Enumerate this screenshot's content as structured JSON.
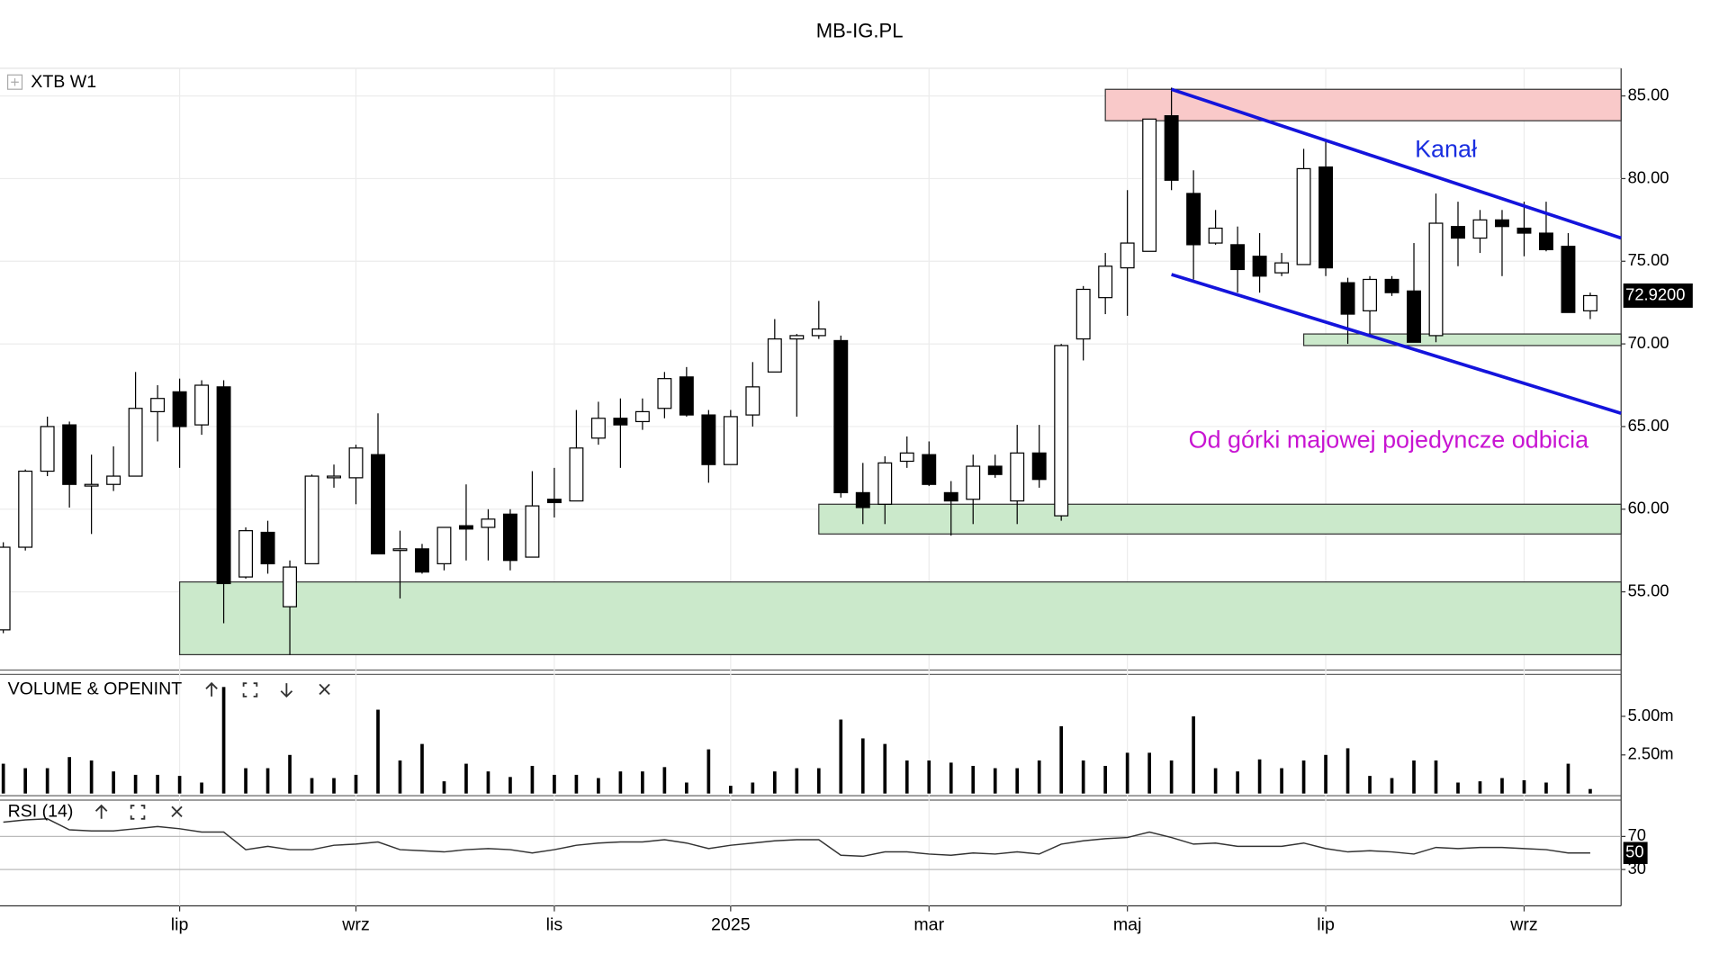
{
  "chart_data": [
    {
      "type": "candlestick",
      "title": "MB-IG.PL",
      "label": "XTB W1",
      "categories": [
        null,
        null,
        null,
        null,
        null,
        null,
        null,
        null,
        "lip",
        null,
        null,
        null,
        null,
        null,
        null,
        null,
        "wrz",
        null,
        null,
        null,
        null,
        null,
        null,
        null,
        null,
        "lis",
        null,
        null,
        null,
        null,
        null,
        null,
        null,
        "2025",
        null,
        null,
        null,
        null,
        null,
        null,
        null,
        null,
        "mar",
        null,
        null,
        null,
        null,
        null,
        null,
        null,
        null,
        "maj",
        null,
        null,
        null,
        null,
        null,
        null,
        null,
        null,
        "lip",
        null,
        null,
        null,
        null,
        null,
        null,
        null,
        null,
        "wrz",
        null,
        null,
        null
      ],
      "open": [
        52.7,
        57.7,
        62.3,
        65.1,
        61.4,
        61.5,
        62.0,
        65.9,
        67.1,
        65.1,
        67.4,
        55.9,
        58.6,
        54.1,
        56.7,
        61.9,
        61.9,
        63.3,
        57.5,
        57.6,
        56.7,
        59.0,
        58.9,
        59.7,
        57.1,
        60.6,
        60.5,
        64.3,
        65.5,
        65.3,
        66.1,
        68.0,
        65.7,
        62.7,
        65.7,
        68.3,
        70.3,
        70.5,
        70.2,
        61.0,
        60.3,
        62.9,
        63.3,
        61.0,
        60.6,
        62.6,
        60.5,
        63.4,
        59.6,
        70.3,
        72.8,
        74.6,
        75.6,
        83.8,
        79.1,
        76.1,
        76.0,
        75.3,
        74.3,
        74.8,
        80.7,
        73.7,
        72.0,
        73.9,
        73.2,
        70.5,
        77.1,
        76.4,
        77.5,
        77.0,
        76.7,
        75.9,
        72.0
      ],
      "high": [
        58.0,
        62.4,
        65.6,
        65.3,
        63.3,
        63.8,
        68.3,
        67.5,
        67.9,
        67.8,
        67.8,
        58.9,
        59.3,
        56.9,
        62.1,
        62.7,
        63.9,
        65.8,
        58.7,
        57.9,
        58.9,
        61.5,
        60.0,
        60.0,
        62.3,
        62.5,
        66.0,
        66.5,
        66.7,
        66.7,
        68.3,
        68.6,
        66.0,
        66.0,
        68.9,
        71.5,
        70.6,
        72.6,
        70.5,
        62.8,
        63.2,
        64.4,
        64.1,
        61.7,
        63.3,
        63.3,
        65.1,
        65.1,
        70.0,
        73.5,
        75.5,
        79.3,
        83.6,
        85.5,
        80.5,
        78.1,
        77.1,
        76.7,
        75.5,
        81.8,
        82.3,
        74.0,
        74.1,
        74.1,
        76.1,
        79.1,
        78.6,
        78.1,
        78.1,
        78.6,
        78.6,
        76.7,
        73.1
      ],
      "low": [
        52.5,
        57.5,
        62.0,
        60.1,
        58.5,
        61.1,
        62.0,
        64.1,
        62.5,
        64.5,
        53.1,
        55.8,
        56.1,
        51.2,
        56.7,
        61.3,
        60.3,
        57.3,
        54.6,
        56.1,
        56.3,
        56.9,
        56.9,
        56.3,
        57.1,
        59.5,
        60.5,
        63.9,
        62.5,
        64.8,
        65.5,
        65.6,
        61.6,
        62.7,
        65.0,
        68.3,
        65.6,
        70.3,
        60.7,
        59.1,
        59.1,
        62.5,
        61.4,
        58.4,
        59.1,
        61.9,
        59.1,
        61.3,
        59.3,
        69.0,
        71.8,
        71.7,
        75.6,
        79.3,
        73.9,
        76.0,
        73.1,
        73.1,
        74.1,
        74.8,
        74.1,
        70.0,
        70.5,
        72.9,
        70.1,
        70.1,
        74.7,
        75.5,
        74.1,
        75.3,
        75.6,
        71.9,
        71.5
      ],
      "close": [
        57.7,
        62.3,
        65.0,
        61.5,
        61.5,
        62.0,
        66.1,
        66.7,
        65.0,
        67.5,
        55.5,
        58.7,
        56.7,
        56.5,
        62.0,
        62.0,
        63.7,
        57.3,
        57.6,
        56.2,
        58.9,
        58.8,
        59.4,
        56.9,
        60.2,
        60.4,
        63.7,
        65.5,
        65.1,
        65.9,
        67.9,
        65.7,
        62.7,
        65.6,
        67.4,
        70.3,
        70.5,
        70.9,
        61.0,
        60.1,
        62.8,
        63.4,
        61.5,
        60.5,
        62.6,
        62.1,
        63.4,
        61.8,
        69.9,
        73.3,
        74.7,
        76.1,
        83.6,
        79.9,
        76.0,
        77.0,
        74.5,
        74.1,
        74.9,
        80.6,
        74.6,
        71.8,
        73.9,
        73.1,
        70.1,
        77.3,
        76.4,
        77.5,
        77.1,
        76.7,
        75.7,
        71.9,
        72.92
      ],
      "last_close_label": "72.9200",
      "up_color": "#ffffff",
      "down_color": "#000000",
      "ylim": [
        50.27,
        86.67
      ],
      "yticks": [
        {
          "value": 85,
          "label": "85.00"
        },
        {
          "value": 80,
          "label": "80.00"
        },
        {
          "value": 75,
          "label": "75.00"
        },
        {
          "value": 70,
          "label": "70.00"
        },
        {
          "value": 65,
          "label": "65.00"
        },
        {
          "value": 60,
          "label": "60.00"
        },
        {
          "value": 55,
          "label": "55.00"
        }
      ],
      "grid": true,
      "zones": [
        {
          "from": 50,
          "low": 83.5,
          "high": 85.4,
          "color": "#f9c9c9"
        },
        {
          "from": 59,
          "low": 69.9,
          "high": 70.6,
          "color": "#cbe9cb"
        },
        {
          "from": 37,
          "low": 58.5,
          "high": 60.3,
          "color": "#cbe9cb"
        },
        {
          "from": 8,
          "low": 51.2,
          "high": 55.6,
          "color": "#cbe9cb"
        }
      ],
      "lines": [
        {
          "x": [
            53,
            73.4
          ],
          "y": [
            85.4,
            76.4
          ],
          "color": "#1414dc"
        },
        {
          "x": [
            53,
            73.4
          ],
          "y": [
            74.2,
            65.8
          ],
          "color": "#1414dc"
        }
      ],
      "annotations": [
        {
          "text": "Kanał",
          "x": 65.45,
          "y": 81.7,
          "color": "#1a2ee0"
        },
        {
          "text": "Od górki majowej pojedyncze odbicia",
          "x": 62.85,
          "y": 64.1,
          "color": "#c814d2"
        }
      ]
    },
    {
      "type": "bar",
      "title": "VOLUME & OPENINT",
      "values": [
        1.93,
        1.64,
        1.64,
        2.36,
        2.14,
        1.43,
        1.21,
        1.21,
        1.14,
        0.71,
        6.9,
        1.64,
        1.64,
        2.5,
        1.0,
        1.0,
        1.21,
        5.43,
        2.14,
        3.21,
        0.79,
        1.93,
        1.43,
        1.07,
        1.79,
        1.21,
        1.21,
        1.0,
        1.43,
        1.43,
        1.71,
        0.71,
        2.86,
        0.5,
        0.71,
        1.43,
        1.64,
        1.64,
        4.79,
        3.57,
        3.21,
        2.14,
        2.14,
        2.0,
        1.79,
        1.64,
        1.64,
        2.14,
        4.36,
        2.14,
        1.79,
        2.64,
        2.64,
        2.14,
        5.0,
        1.64,
        1.43,
        2.21,
        1.64,
        2.14,
        2.5,
        2.93,
        1.14,
        1.0,
        2.14,
        2.14,
        0.71,
        0.79,
        1.0,
        0.86,
        0.71,
        1.93,
        0.29
      ],
      "color": "#000000",
      "ylim": [
        -0.14,
        7.57
      ],
      "yticks": [
        {
          "value": 5,
          "label": "5.00m"
        },
        {
          "value": 2.5,
          "label": "2.50m"
        }
      ]
    },
    {
      "type": "line",
      "title": "RSI (14)",
      "values": [
        87.3,
        90.0,
        91.3,
        78.0,
        76.7,
        76.7,
        79.3,
        82.0,
        79.3,
        75.3,
        75.3,
        54.0,
        58.0,
        54.0,
        54.0,
        59.3,
        60.7,
        63.3,
        54.0,
        52.7,
        51.3,
        54.0,
        55.3,
        54.0,
        50.0,
        54.0,
        59.3,
        62.0,
        63.3,
        63.3,
        66.0,
        62.0,
        55.3,
        59.3,
        62.0,
        64.7,
        66.0,
        66.0,
        47.3,
        46.0,
        51.3,
        51.3,
        48.7,
        47.3,
        50.0,
        48.7,
        51.3,
        48.7,
        60.7,
        64.7,
        67.3,
        68.7,
        75.3,
        68.7,
        60.7,
        62.0,
        58.0,
        58.0,
        58.0,
        62.0,
        55.3,
        51.3,
        52.7,
        51.3,
        48.7,
        56.7,
        55.3,
        56.7,
        56.7,
        55.3,
        54.0,
        50.0,
        50.0
      ],
      "last_label": "50",
      "color": "#333333",
      "ylim": [
        -14,
        111.3
      ],
      "yticks": [
        70,
        30
      ]
    }
  ]
}
